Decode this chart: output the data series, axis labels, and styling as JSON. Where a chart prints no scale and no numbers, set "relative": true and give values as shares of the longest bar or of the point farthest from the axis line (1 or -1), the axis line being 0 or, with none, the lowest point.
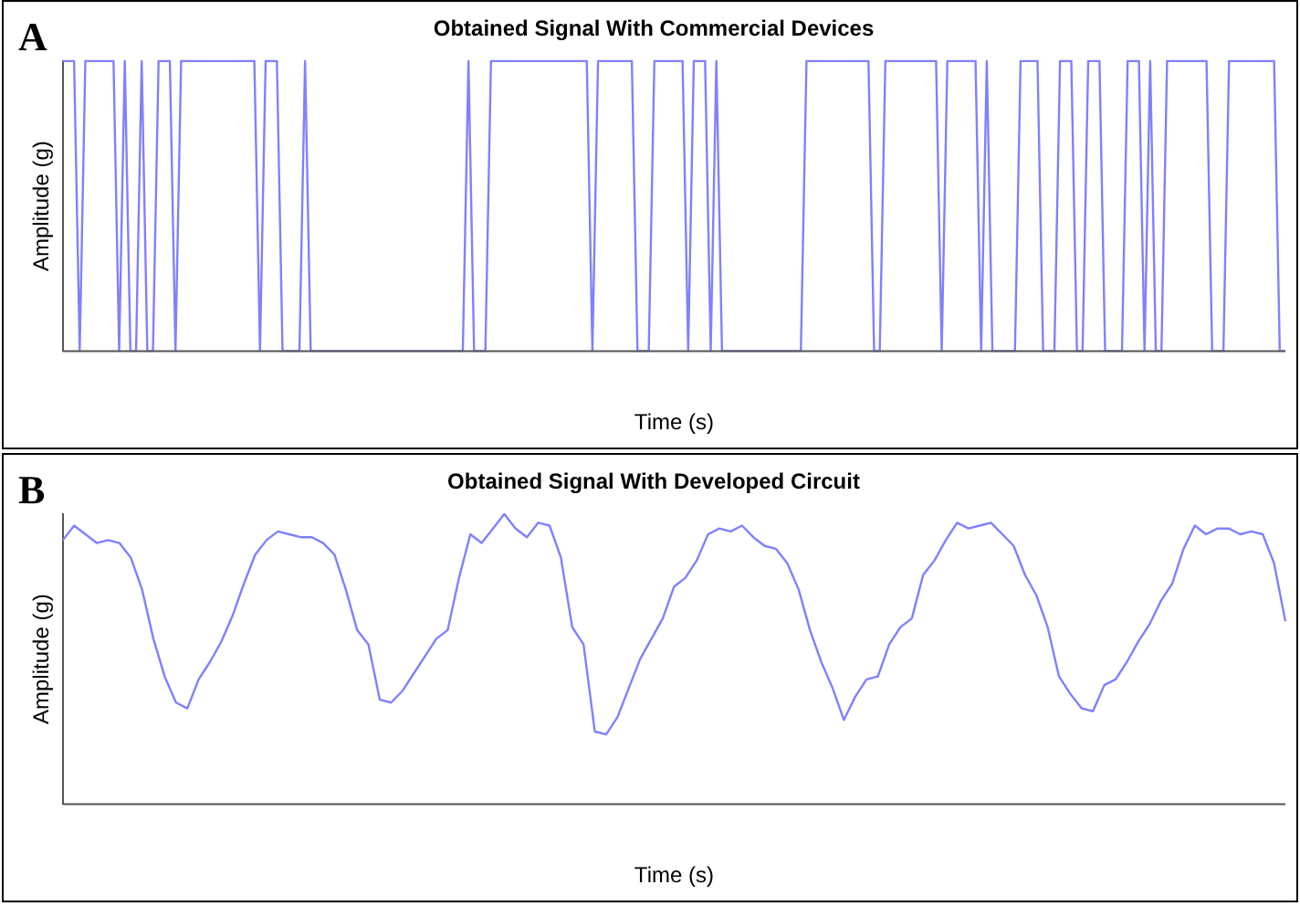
{
  "chart_data": [
    {
      "type": "line",
      "title": "Obtained Signal With Commercial Devices",
      "xlabel": "Time (s)",
      "ylabel": "Amplitude (g)",
      "annotations": [
        "A"
      ],
      "relative": true,
      "categories": [
        null,
        null,
        null,
        null,
        null,
        null,
        null,
        null,
        null,
        null,
        null,
        null,
        null,
        null,
        null,
        null,
        null,
        null,
        null,
        null,
        null,
        null,
        null,
        null,
        null,
        null,
        null,
        null,
        null,
        null,
        null,
        null,
        null,
        null,
        null,
        null,
        null,
        null,
        null,
        null,
        null,
        null,
        null,
        null,
        null,
        null,
        null,
        null,
        null,
        null,
        null,
        null,
        null,
        null,
        null,
        null,
        null,
        null,
        null,
        null,
        null,
        null,
        null,
        null,
        null,
        null,
        null,
        null,
        null,
        null,
        null,
        null,
        null,
        null,
        null,
        null,
        null,
        null,
        null,
        null,
        null,
        null,
        null,
        null,
        null,
        null,
        null,
        null,
        null,
        null,
        null,
        null,
        null,
        null,
        null,
        null,
        null,
        null,
        null,
        null,
        null,
        null,
        null,
        null,
        null,
        null,
        null,
        null,
        null,
        null,
        null,
        null,
        null,
        null,
        null,
        null,
        null,
        null,
        null,
        null,
        null,
        null,
        null,
        null,
        null,
        null,
        null,
        null,
        null,
        null,
        null,
        null,
        null,
        null,
        null,
        null,
        null,
        null,
        null,
        null,
        null,
        null,
        null,
        null,
        null,
        null,
        null,
        null,
        null,
        null,
        null,
        null,
        null,
        null,
        null,
        null,
        null,
        null,
        null,
        null,
        null,
        null,
        null,
        null,
        null,
        null,
        null,
        null,
        null,
        null,
        null,
        null,
        null,
        null,
        null,
        null,
        null,
        null,
        null,
        null,
        null,
        null,
        null,
        null,
        null,
        null,
        null,
        null,
        null,
        null,
        null,
        null,
        null,
        null,
        null,
        null,
        null,
        null,
        null,
        null,
        null,
        null,
        null,
        null,
        null,
        null,
        null,
        null,
        null,
        null,
        null,
        null,
        null,
        null,
        null,
        null,
        null,
        null
      ],
      "series": [
        {
          "color": "#8080ff",
          "values": [
            1,
            1,
            1,
            0,
            1,
            1,
            1,
            1,
            1,
            1,
            0,
            1,
            0,
            0,
            1,
            0,
            0,
            1,
            1,
            1,
            0,
            1,
            1,
            1,
            1,
            1,
            1,
            1,
            1,
            1,
            1,
            1,
            1,
            1,
            1,
            0,
            1,
            1,
            1,
            0,
            0,
            0,
            0,
            1,
            0,
            0,
            0,
            0,
            0,
            0,
            0,
            0,
            0,
            0,
            0,
            0,
            0,
            0,
            0,
            0,
            0,
            0,
            0,
            0,
            0,
            0,
            0,
            0,
            0,
            0,
            0,
            0,
            1,
            0,
            0,
            0,
            1,
            1,
            1,
            1,
            1,
            1,
            1,
            1,
            1,
            1,
            1,
            1,
            1,
            1,
            1,
            1,
            1,
            1,
            0,
            1,
            1,
            1,
            1,
            1,
            1,
            1,
            0,
            0,
            0,
            1,
            1,
            1,
            1,
            1,
            1,
            0,
            1,
            1,
            1,
            0,
            1,
            0,
            0,
            0,
            0,
            0,
            0,
            0,
            0,
            0,
            0,
            0,
            0,
            0,
            0,
            0,
            1,
            1,
            1,
            1,
            1,
            1,
            1,
            1,
            1,
            1,
            1,
            1,
            0,
            0,
            1,
            1,
            1,
            1,
            1,
            1,
            1,
            1,
            1,
            1,
            0,
            1,
            1,
            1,
            1,
            1,
            1,
            0,
            1,
            0,
            0,
            0,
            0,
            0,
            1,
            1,
            1,
            1,
            0,
            0,
            0,
            1,
            1,
            1,
            0,
            0,
            1,
            1,
            1,
            0,
            0,
            0,
            0,
            1,
            1,
            1,
            0,
            1,
            0,
            0,
            1,
            1,
            1,
            1,
            1,
            1,
            1,
            1,
            0,
            0,
            0,
            1,
            1,
            1,
            1,
            1,
            1,
            1,
            1,
            1,
            0,
            0
          ]
        }
      ]
    },
    {
      "type": "line",
      "title": "Obtained Signal With Developed Circuit",
      "xlabel": "Time (s)",
      "ylabel": "Amplitude (g)",
      "annotations": [
        "B"
      ],
      "relative": true,
      "categories": [
        null,
        null,
        null,
        null,
        null,
        null,
        null,
        null,
        null,
        null,
        null,
        null,
        null,
        null,
        null,
        null,
        null,
        null,
        null,
        null,
        null,
        null,
        null,
        null,
        null,
        null,
        null,
        null,
        null,
        null,
        null,
        null,
        null,
        null,
        null,
        null,
        null,
        null,
        null,
        null,
        null,
        null,
        null,
        null,
        null,
        null,
        null,
        null,
        null,
        null,
        null,
        null,
        null,
        null,
        null,
        null,
        null,
        null,
        null,
        null,
        null,
        null,
        null,
        null,
        null,
        null,
        null,
        null,
        null,
        null,
        null,
        null,
        null,
        null,
        null,
        null,
        null,
        null,
        null,
        null,
        null,
        null,
        null,
        null,
        null,
        null,
        null,
        null,
        null,
        null,
        null,
        null,
        null,
        null,
        null,
        null,
        null,
        null,
        null,
        null,
        null,
        null,
        null,
        null,
        null,
        null,
        null,
        null,
        null
      ],
      "series": [
        {
          "color": "#8080ff",
          "values": [
            0.91,
            0.96,
            0.93,
            0.9,
            0.91,
            0.9,
            0.85,
            0.74,
            0.57,
            0.44,
            0.35,
            0.33,
            0.43,
            0.49,
            0.56,
            0.65,
            0.76,
            0.86,
            0.91,
            0.94,
            0.93,
            0.92,
            0.92,
            0.9,
            0.86,
            0.74,
            0.6,
            0.55,
            0.36,
            0.35,
            0.39,
            0.45,
            0.51,
            0.57,
            0.6,
            0.78,
            0.93,
            0.9,
            0.95,
            1,
            0.95,
            0.92,
            0.97,
            0.96,
            0.85,
            0.61,
            0.55,
            0.25,
            0.24,
            0.3,
            0.4,
            0.5,
            0.57,
            0.64,
            0.75,
            0.78,
            0.84,
            0.93,
            0.95,
            0.94,
            0.96,
            0.92,
            0.89,
            0.88,
            0.83,
            0.74,
            0.6,
            0.49,
            0.4,
            0.29,
            0.37,
            0.43,
            0.44,
            0.55,
            0.61,
            0.64,
            0.79,
            0.84,
            0.91,
            0.97,
            0.95,
            0.96,
            0.97,
            0.93,
            0.89,
            0.79,
            0.72,
            0.61,
            0.44,
            0.38,
            0.33,
            0.32,
            0.41,
            0.43,
            0.49,
            0.56,
            0.62,
            0.7,
            0.76,
            0.88,
            0.96,
            0.93,
            0.95,
            0.95,
            0.93,
            0.94,
            0.93,
            0.83,
            0.63
          ]
        }
      ]
    }
  ]
}
